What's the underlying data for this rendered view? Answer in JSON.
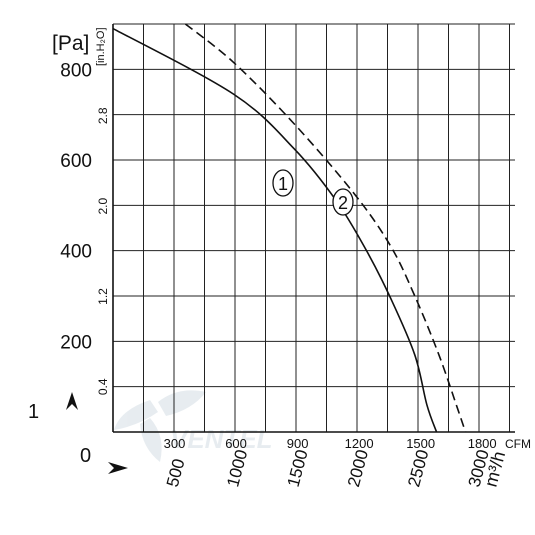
{
  "chart_data": {
    "type": "line",
    "units": {
      "pressure_pa": "[Pa]",
      "pressure_inh2o": "[in.H₂O]",
      "flow_cfm": "CFM",
      "flow_m3h": "m³/h"
    },
    "y_pa_ticks": [
      "200",
      "400",
      "600",
      "800"
    ],
    "y_inh2o_ticks": [
      "0.4",
      "1.2",
      "2.0",
      "2.8"
    ],
    "x_cfm_ticks": [
      "300",
      "600",
      "900",
      "1200",
      "1500",
      "1800"
    ],
    "x_m3h_ticks": [
      "500",
      "1000",
      "1500",
      "2000",
      "2500",
      "3000"
    ],
    "xlim_m3h": [
      0,
      3330
    ],
    "ylim_pa": [
      0,
      900
    ],
    "grid": true,
    "series": [
      {
        "name": "1",
        "style": "solid",
        "points": [
          [
            0,
            890
          ],
          [
            1000,
            745
          ],
          [
            1500,
            625
          ],
          [
            1850,
            510
          ],
          [
            2100,
            400
          ],
          [
            2300,
            295
          ],
          [
            2500,
            170
          ],
          [
            2600,
            60
          ],
          [
            2680,
            0
          ]
        ]
      },
      {
        "name": "2",
        "style": "dashed",
        "points": [
          [
            600,
            900
          ],
          [
            1000,
            815
          ],
          [
            1500,
            680
          ],
          [
            2000,
            525
          ],
          [
            2300,
            410
          ],
          [
            2500,
            300
          ],
          [
            2700,
            170
          ],
          [
            2850,
            55
          ],
          [
            2920,
            0
          ]
        ]
      }
    ],
    "side_labels": {
      "upper": "1",
      "lower": "0"
    },
    "watermark": "VENTEL"
  }
}
